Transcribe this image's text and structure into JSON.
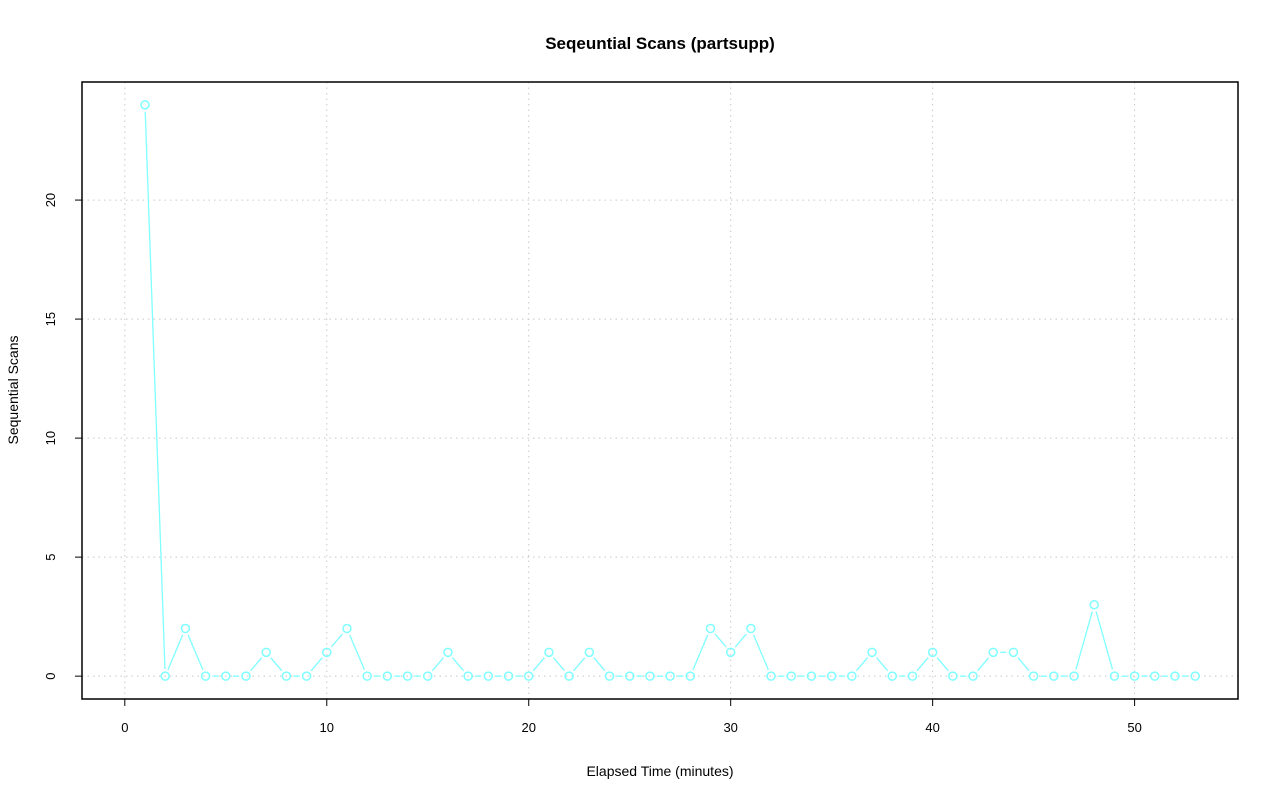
{
  "chart_data": {
    "type": "line",
    "title": "Seqeuntial Scans (partsupp)",
    "xlabel": "Elapsed Time (minutes)",
    "ylabel": "Sequential Scans",
    "xlim": [
      -2.12,
      55.12
    ],
    "ylim": [
      -0.96,
      24.96
    ],
    "xticks": [
      0,
      10,
      20,
      30,
      40,
      50
    ],
    "yticks": [
      0,
      5,
      10,
      15,
      20
    ],
    "grid": true,
    "color": "#7fffff",
    "x": [
      1,
      2,
      3,
      4,
      5,
      6,
      7,
      8,
      9,
      10,
      11,
      12,
      13,
      14,
      15,
      16,
      17,
      18,
      19,
      20,
      21,
      22,
      23,
      24,
      25,
      26,
      27,
      28,
      29,
      30,
      31,
      32,
      33,
      34,
      35,
      36,
      37,
      38,
      39,
      40,
      41,
      42,
      43,
      44,
      45,
      46,
      47,
      48,
      49,
      50,
      51,
      52,
      53
    ],
    "y": [
      24,
      0,
      2,
      0,
      0,
      0,
      1,
      0,
      0,
      1,
      2,
      0,
      0,
      0,
      0,
      1,
      0,
      0,
      0,
      0,
      1,
      0,
      1,
      0,
      0,
      0,
      0,
      0,
      2,
      1,
      2,
      0,
      0,
      0,
      0,
      0,
      1,
      0,
      0,
      1,
      0,
      0,
      1,
      1,
      0,
      0,
      0,
      3,
      0,
      0,
      0,
      0,
      0
    ]
  }
}
